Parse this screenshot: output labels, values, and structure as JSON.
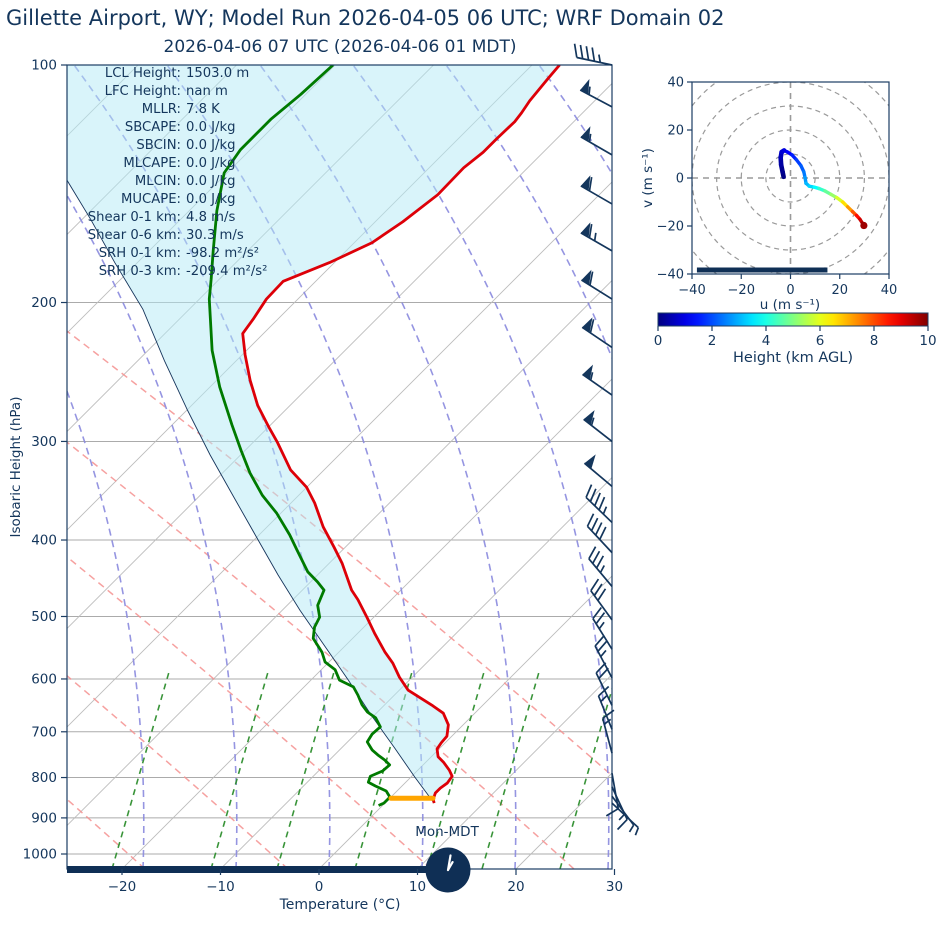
{
  "titles": {
    "main": "Gillette  Airport, WY; Model Run 2026-04-05 06 UTC; WRF Domain 02",
    "sub": "2026-04-06 07 UTC  (2026-04-06 01 MDT)"
  },
  "skewt": {
    "xlabel": "Temperature (°C)",
    "ylabel": "Isobaric Height (hPa)",
    "x_ticks": [
      -20,
      -10,
      0,
      10,
      20,
      30
    ],
    "y_ticks": [
      100,
      200,
      300,
      400,
      500,
      600,
      700,
      800,
      900,
      1000
    ],
    "clock_label": "Mon-MDT"
  },
  "diagnostics": [
    {
      "label": "LCL Height:",
      "value": "1503.0 m"
    },
    {
      "label": "LFC Height:",
      "value": "nan m"
    },
    {
      "label": "MLLR:",
      "value": "7.8 K"
    },
    {
      "label": "SBCAPE:",
      "value": "0.0 J/kg"
    },
    {
      "label": "SBCIN:",
      "value": "0.0 J/kg"
    },
    {
      "label": "MLCAPE:",
      "value": "0.0 J/kg"
    },
    {
      "label": "MLCIN:",
      "value": "0.0 J/kg"
    },
    {
      "label": "MUCAPE:",
      "value": "0.0 J/kg"
    },
    {
      "label": "Shear 0-1 km:",
      "value": "4.8 m/s"
    },
    {
      "label": "Shear 0-6 km:",
      "value": "30.3 m/s"
    },
    {
      "label": "SRH 0-1 km:",
      "value": "-98.2 m²/s²"
    },
    {
      "label": "SRH 0-3 km:",
      "value": "-209.4 m²/s²"
    }
  ],
  "hodograph": {
    "xlabel": "u (m s⁻¹)",
    "ylabel": "v (m s⁻¹)",
    "x_ticks": [
      -40,
      -20,
      0,
      20,
      40
    ],
    "y_ticks": [
      -40,
      -20,
      0,
      20,
      40
    ],
    "ring_radii": [
      10,
      20,
      30,
      40,
      50,
      60
    ]
  },
  "colorbar": {
    "label": "Height (km AGL)",
    "ticks": [
      0,
      2,
      4,
      6,
      8,
      10
    ],
    "min": 0,
    "max": 10
  },
  "colors": {
    "navy": "#14365c",
    "temperature": "#dd0008",
    "dewpoint": "#007a00",
    "parcel": "#16355c",
    "shade": "rgba(180,233,245,0.50)",
    "grid_gray": "#ababab",
    "dry_adiabat": "#f5908f",
    "moist_adiabat": "#8a8ade",
    "mixing_ratio": "#2f8f2f",
    "lcl_marker": "#ffa500",
    "ring_gray": "#9a9a9a"
  },
  "chart_data": {
    "type": "line",
    "title": "Skew-T / log-p sounding with hodograph inset",
    "pressure_axis_hpa": [
      100,
      1045
    ],
    "temperature_axis_c": [
      -25.6,
      30
    ],
    "lcl_pressure_hpa": 850,
    "temperature_profile_p_t": [
      [
        100,
        -57.2
      ],
      [
        104,
        -57.0
      ],
      [
        111,
        -56.6
      ],
      [
        115,
        -56.2
      ],
      [
        118,
        -56.0
      ],
      [
        124,
        -56.1
      ],
      [
        129,
        -56.1
      ],
      [
        135,
        -56.5
      ],
      [
        146,
        -56.4
      ],
      [
        158,
        -57.2
      ],
      [
        168,
        -58.2
      ],
      [
        178,
        -60.5
      ],
      [
        188,
        -63.3
      ],
      [
        198,
        -63.2
      ],
      [
        210,
        -62.5
      ],
      [
        219,
        -62.1
      ],
      [
        233,
        -59.7
      ],
      [
        251,
        -56.6
      ],
      [
        270,
        -53.3
      ],
      [
        288,
        -49.9
      ],
      [
        301,
        -47.5
      ],
      [
        326,
        -43.4
      ],
      [
        343,
        -40.0
      ],
      [
        359,
        -37.6
      ],
      [
        385,
        -34.3
      ],
      [
        408,
        -31.2
      ],
      [
        428,
        -28.7
      ],
      [
        463,
        -25.0
      ],
      [
        476,
        -23.4
      ],
      [
        502,
        -20.6
      ],
      [
        525,
        -18.3
      ],
      [
        555,
        -15.3
      ],
      [
        573,
        -13.4
      ],
      [
        597,
        -11.3
      ],
      [
        620,
        -9.1
      ],
      [
        634,
        -7.1
      ],
      [
        649,
        -5.0
      ],
      [
        663,
        -3.2
      ],
      [
        686,
        -1.5
      ],
      [
        709,
        -0.5
      ],
      [
        723,
        -0.4
      ],
      [
        736,
        -0.2
      ],
      [
        753,
        0.7
      ],
      [
        765,
        1.8
      ],
      [
        783,
        3.2
      ],
      [
        797,
        4.1
      ],
      [
        813,
        4.3
      ],
      [
        825,
        4.1
      ],
      [
        837,
        4.1
      ],
      [
        852,
        4.5
      ],
      [
        862,
        5.0
      ]
    ],
    "dewpoint_profile_p_t": [
      [
        100,
        -80.2
      ],
      [
        109,
        -80.5
      ],
      [
        117,
        -81.0
      ],
      [
        128,
        -81.0
      ],
      [
        137,
        -80.3
      ],
      [
        153,
        -77.2
      ],
      [
        172,
        -73.5
      ],
      [
        187,
        -70.8
      ],
      [
        198,
        -69.0
      ],
      [
        230,
        -63.5
      ],
      [
        256,
        -59.0
      ],
      [
        286,
        -53.9
      ],
      [
        308,
        -50.4
      ],
      [
        329,
        -47.2
      ],
      [
        351,
        -43.7
      ],
      [
        370,
        -40.4
      ],
      [
        394,
        -36.9
      ],
      [
        412,
        -34.6
      ],
      [
        439,
        -31.3
      ],
      [
        452,
        -29.3
      ],
      [
        463,
        -27.8
      ],
      [
        484,
        -26.9
      ],
      [
        501,
        -25.5
      ],
      [
        516,
        -25.0
      ],
      [
        533,
        -24.0
      ],
      [
        555,
        -21.7
      ],
      [
        571,
        -20.4
      ],
      [
        584,
        -18.6
      ],
      [
        602,
        -17.1
      ],
      [
        614,
        -15.0
      ],
      [
        629,
        -13.7
      ],
      [
        647,
        -12.3
      ],
      [
        661,
        -11.0
      ],
      [
        672,
        -9.6
      ],
      [
        690,
        -8.2
      ],
      [
        705,
        -8.3
      ],
      [
        721,
        -8.0
      ],
      [
        738,
        -6.7
      ],
      [
        749,
        -5.6
      ],
      [
        760,
        -4.4
      ],
      [
        771,
        -3.4
      ],
      [
        785,
        -3.5
      ],
      [
        797,
        -4.2
      ],
      [
        811,
        -3.8
      ],
      [
        820,
        -2.7
      ],
      [
        832,
        -1.1
      ],
      [
        847,
        -0.1
      ],
      [
        862,
        -0.1
      ],
      [
        868,
        -0.4
      ]
    ],
    "parcel_profile_p_t": [
      [
        100,
        -109.0
      ],
      [
        140,
        -95.5
      ],
      [
        157,
        -89.1
      ],
      [
        178,
        -82.3
      ],
      [
        204,
        -74.7
      ],
      [
        237,
        -67.3
      ],
      [
        274,
        -59.9
      ],
      [
        312,
        -53.1
      ],
      [
        351,
        -46.7
      ],
      [
        394,
        -40.4
      ],
      [
        443,
        -34.0
      ],
      [
        491,
        -28.2
      ],
      [
        540,
        -22.6
      ],
      [
        602,
        -16.2
      ],
      [
        667,
        -10.3
      ],
      [
        734,
        -4.6
      ],
      [
        799,
        0.4
      ],
      [
        862,
        5.0
      ]
    ],
    "wind_barbs": [
      {
        "p": 100,
        "rot": -78,
        "parts": "FFFFH"
      },
      {
        "p": 113,
        "rot": -62,
        "parts": "PH"
      },
      {
        "p": 130,
        "rot": -60,
        "parts": "PH"
      },
      {
        "p": 150,
        "rot": -60,
        "parts": "PF"
      },
      {
        "p": 172,
        "rot": -60,
        "parts": "PFH"
      },
      {
        "p": 198,
        "rot": -58,
        "parts": "PF"
      },
      {
        "p": 228,
        "rot": -56,
        "parts": "PF"
      },
      {
        "p": 262,
        "rot": -55,
        "parts": "PH"
      },
      {
        "p": 300,
        "rot": -52,
        "parts": "PH"
      },
      {
        "p": 342,
        "rot": -50,
        "parts": "P"
      },
      {
        "p": 380,
        "rot": -46,
        "parts": "FFFFH"
      },
      {
        "p": 415,
        "rot": -43,
        "parts": "FFFF"
      },
      {
        "p": 458,
        "rot": -40,
        "parts": "FFFH"
      },
      {
        "p": 505,
        "rot": -36,
        "parts": "FFF"
      },
      {
        "p": 550,
        "rot": -32,
        "parts": "FFH"
      },
      {
        "p": 598,
        "rot": -28,
        "parts": "FFH"
      },
      {
        "p": 648,
        "rot": -26,
        "parts": "FF"
      },
      {
        "p": 695,
        "rot": -22,
        "parts": "FH"
      },
      {
        "p": 745,
        "rot": -15,
        "parts": "FH"
      },
      {
        "p": 790,
        "rot": 170,
        "parts": "F"
      },
      {
        "p": 822,
        "rot": 155,
        "parts": "FH"
      },
      {
        "p": 845,
        "rot": 143,
        "parts": "H"
      },
      {
        "p": 862,
        "rot": 133,
        "parts": "H"
      }
    ],
    "hodograph_trace_u_v_km": [
      [
        -2.8,
        0.5,
        0.0
      ],
      [
        -3.2,
        2.5,
        0.1
      ],
      [
        -3.8,
        5.5,
        0.25
      ],
      [
        -4.0,
        8.5,
        0.45
      ],
      [
        -3.6,
        10.8,
        0.7
      ],
      [
        -2.6,
        11.5,
        0.9
      ],
      [
        -1.2,
        10.8,
        1.1
      ],
      [
        0.6,
        9.6,
        1.4
      ],
      [
        2.4,
        7.6,
        1.7
      ],
      [
        4.2,
        5.2,
        2.0
      ],
      [
        5.4,
        2.6,
        2.3
      ],
      [
        5.9,
        0.2,
        2.6
      ],
      [
        6.3,
        -2.2,
        2.9
      ],
      [
        7.6,
        -3.4,
        3.2
      ],
      [
        9.6,
        -3.8,
        3.5
      ],
      [
        11.6,
        -4.4,
        4.0
      ],
      [
        14.0,
        -5.4,
        4.5
      ],
      [
        16.4,
        -6.8,
        5.0
      ],
      [
        18.8,
        -8.2,
        5.5
      ],
      [
        21.2,
        -10.0,
        6.2
      ],
      [
        23.2,
        -12.0,
        6.9
      ],
      [
        25.2,
        -14.0,
        7.6
      ],
      [
        26.8,
        -15.6,
        8.3
      ],
      [
        28.2,
        -17.2,
        9.0
      ],
      [
        29.2,
        -18.8,
        9.5
      ],
      [
        29.8,
        -19.8,
        10.0
      ]
    ],
    "hodograph_ground_bar_u": [
      -38,
      15
    ],
    "surface_bar_note": "thick navy bar along skew-T bottom axis from left edge to clock icon",
    "clock_time_shown": "01:00"
  }
}
